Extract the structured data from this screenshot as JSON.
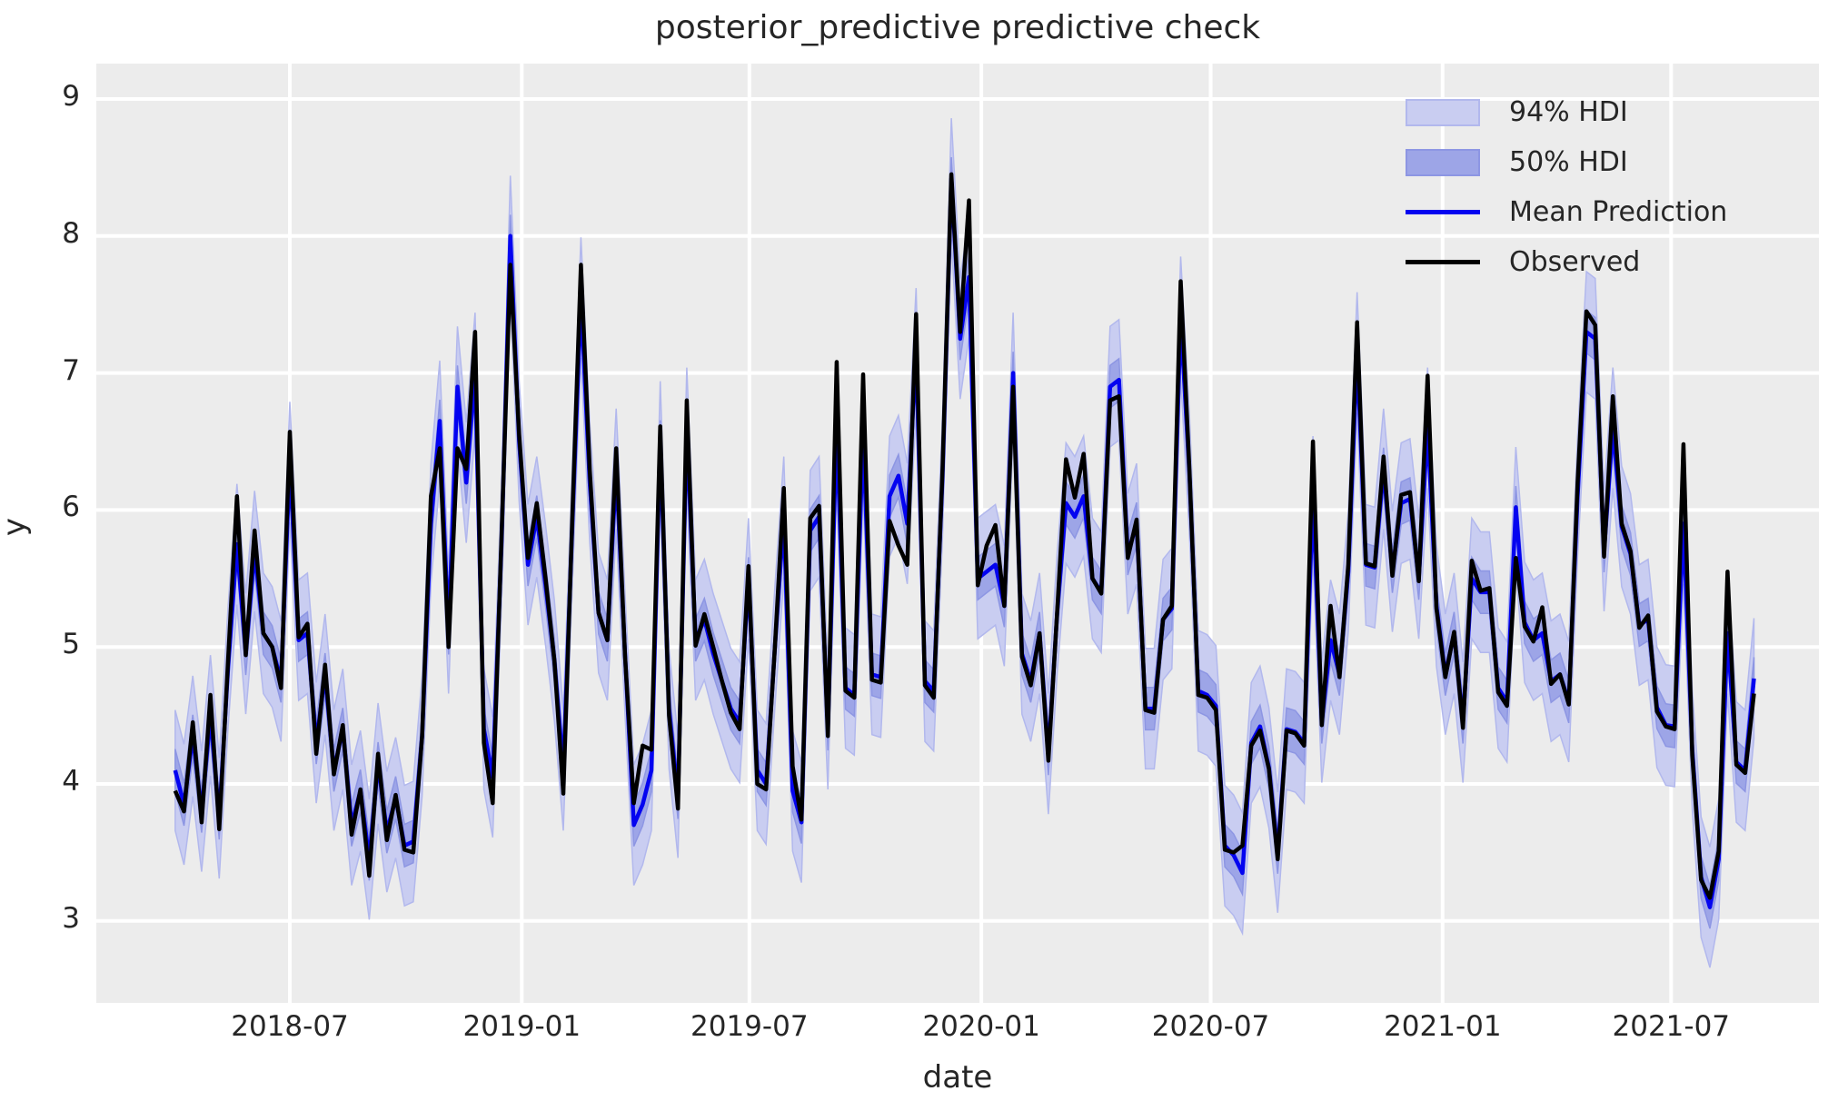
{
  "figure": {
    "title": "posterior_predictive predictive check",
    "xlabel": "date",
    "ylabel": "y"
  },
  "legend": {
    "entries": [
      {
        "label": "94% HDI",
        "type": "patch",
        "fill": "#c9cdf1",
        "edge": "#b2b8ed"
      },
      {
        "label": "50% HDI",
        "type": "patch",
        "fill": "#9da5e7",
        "edge": "#8d96e3"
      },
      {
        "label": "Mean Prediction",
        "type": "line",
        "color": "#0404f0"
      },
      {
        "label": "Observed",
        "type": "line",
        "color": "#000000"
      }
    ]
  },
  "colors": {
    "plot_background": "#ececec",
    "grid": "#ffffff",
    "observed": "#000000",
    "mean": "#0404f0",
    "hdi94_fill": "#c9cdf1",
    "hdi94_edge": "#b2b8ed",
    "hdi50_fill": "#9da5e7",
    "hdi50_edge": "#8d96e3",
    "text": "#262626"
  },
  "chart_data": {
    "type": "line",
    "title": "posterior_predictive predictive check",
    "xlabel": "date",
    "ylabel": "y",
    "grid": true,
    "legend_position": "upper right",
    "start_date": "2018-04-01",
    "frequency": "weekly",
    "n_points": 180,
    "ylim": [
      2.4,
      9.26
    ],
    "y_ticks": [
      3,
      4,
      5,
      6,
      7,
      8,
      9
    ],
    "x_ticks": [
      {
        "label": "2018-07",
        "week": 13.0
      },
      {
        "label": "2019-01",
        "week": 39.3
      },
      {
        "label": "2019-07",
        "week": 65.1
      },
      {
        "label": "2020-01",
        "week": 91.4
      },
      {
        "label": "2020-07",
        "week": 117.4
      },
      {
        "label": "2021-01",
        "week": 143.7
      },
      {
        "label": "2021-07",
        "week": 169.6
      }
    ],
    "bands": [
      {
        "name": "94% HDI",
        "around": "Mean Prediction",
        "half_width": 0.44
      },
      {
        "name": "50% HDI",
        "around": "Mean Prediction",
        "half_width": 0.155
      }
    ],
    "series": [
      {
        "name": "Observed",
        "color": "#000000",
        "values": [
          3.95,
          3.8,
          4.45,
          3.72,
          4.65,
          3.67,
          4.9,
          6.1,
          4.94,
          5.85,
          5.1,
          5.0,
          4.7,
          6.57,
          5.07,
          5.17,
          4.22,
          4.87,
          4.07,
          4.43,
          3.63,
          3.96,
          3.33,
          4.22,
          3.59,
          3.92,
          3.52,
          3.5,
          4.35,
          6.1,
          6.45,
          5.0,
          6.45,
          6.3,
          7.3,
          4.3,
          3.86,
          5.8,
          7.79,
          6.55,
          5.65,
          6.05,
          5.5,
          4.9,
          3.93,
          5.9,
          7.79,
          6.29,
          5.25,
          5.05,
          6.45,
          4.94,
          3.86,
          4.28,
          4.25,
          6.61,
          4.5,
          3.82,
          6.8,
          5.01,
          5.24,
          5.0,
          4.75,
          4.52,
          4.4,
          5.59,
          4.0,
          3.96,
          5.0,
          6.16,
          4.13,
          3.74,
          5.94,
          6.03,
          4.35,
          7.08,
          4.68,
          4.63,
          6.99,
          4.76,
          4.74,
          5.92,
          5.74,
          5.6,
          7.43,
          4.72,
          4.63,
          6.3,
          8.45,
          7.3,
          8.26,
          5.45,
          5.74,
          5.89,
          5.3,
          6.9,
          4.93,
          4.72,
          5.1,
          4.17,
          5.26,
          6.37,
          6.09,
          6.41,
          5.5,
          5.39,
          6.8,
          6.83,
          5.65,
          5.93,
          4.54,
          4.52,
          5.2,
          5.3,
          7.67,
          6.28,
          4.65,
          4.63,
          4.54,
          3.52,
          3.5,
          3.55,
          4.28,
          4.39,
          4.11,
          3.45,
          4.39,
          4.37,
          4.28,
          6.5,
          4.43,
          5.3,
          4.78,
          5.6,
          7.37,
          5.61,
          5.59,
          6.39,
          5.52,
          6.11,
          6.13,
          5.48,
          6.98,
          5.28,
          4.78,
          5.11,
          4.41,
          5.63,
          5.41,
          5.43,
          4.67,
          4.57,
          5.65,
          5.15,
          5.04,
          5.29,
          4.73,
          4.8,
          4.58,
          6.2,
          7.45,
          7.35,
          5.66,
          6.83,
          5.9,
          5.7,
          5.14,
          5.23,
          4.53,
          4.42,
          4.4,
          6.48,
          4.21,
          3.3,
          3.17,
          3.51,
          5.55,
          4.14,
          4.08,
          4.66
        ]
      },
      {
        "name": "Mean Prediction",
        "color": "#0404f0",
        "values": [
          4.1,
          3.85,
          4.35,
          3.8,
          4.5,
          3.75,
          4.85,
          5.75,
          4.95,
          5.7,
          5.1,
          5.0,
          4.75,
          6.35,
          5.05,
          5.1,
          4.3,
          4.8,
          4.1,
          4.4,
          3.7,
          3.95,
          3.45,
          4.15,
          3.65,
          3.9,
          3.55,
          3.58,
          4.35,
          5.9,
          6.65,
          5.1,
          6.9,
          6.2,
          7.0,
          4.4,
          4.05,
          5.75,
          8.0,
          6.5,
          5.6,
          5.95,
          5.45,
          4.9,
          4.1,
          5.85,
          7.55,
          6.2,
          5.25,
          5.05,
          6.3,
          4.95,
          3.7,
          3.85,
          4.1,
          6.5,
          4.55,
          3.9,
          6.6,
          5.05,
          5.2,
          4.95,
          4.75,
          4.55,
          4.45,
          5.5,
          4.1,
          4.0,
          5.0,
          5.95,
          3.95,
          3.72,
          5.85,
          5.95,
          4.4,
          6.6,
          4.7,
          4.65,
          6.55,
          4.8,
          4.78,
          6.1,
          6.25,
          5.9,
          7.18,
          4.75,
          4.68,
          6.25,
          8.42,
          7.25,
          7.7,
          5.5,
          5.55,
          5.6,
          5.3,
          7.0,
          4.95,
          4.75,
          5.1,
          4.22,
          5.25,
          6.05,
          5.95,
          6.1,
          5.5,
          5.4,
          6.9,
          6.95,
          5.68,
          5.9,
          4.55,
          4.55,
          5.2,
          5.28,
          7.41,
          6.25,
          4.68,
          4.65,
          4.57,
          3.55,
          3.48,
          3.35,
          4.3,
          4.42,
          4.12,
          3.5,
          4.4,
          4.38,
          4.3,
          6.1,
          4.45,
          5.05,
          4.8,
          5.55,
          7.15,
          5.6,
          5.58,
          6.3,
          5.55,
          6.05,
          6.08,
          5.5,
          6.6,
          5.3,
          4.8,
          5.1,
          4.45,
          5.5,
          5.4,
          5.4,
          4.7,
          4.6,
          6.02,
          5.18,
          5.05,
          5.1,
          4.75,
          4.8,
          4.6,
          6.1,
          7.3,
          7.25,
          5.7,
          6.6,
          5.88,
          5.68,
          5.16,
          5.2,
          4.56,
          4.43,
          4.42,
          5.9,
          4.25,
          3.32,
          3.1,
          3.45,
          5.1,
          4.16,
          4.1,
          4.77
        ]
      }
    ]
  }
}
